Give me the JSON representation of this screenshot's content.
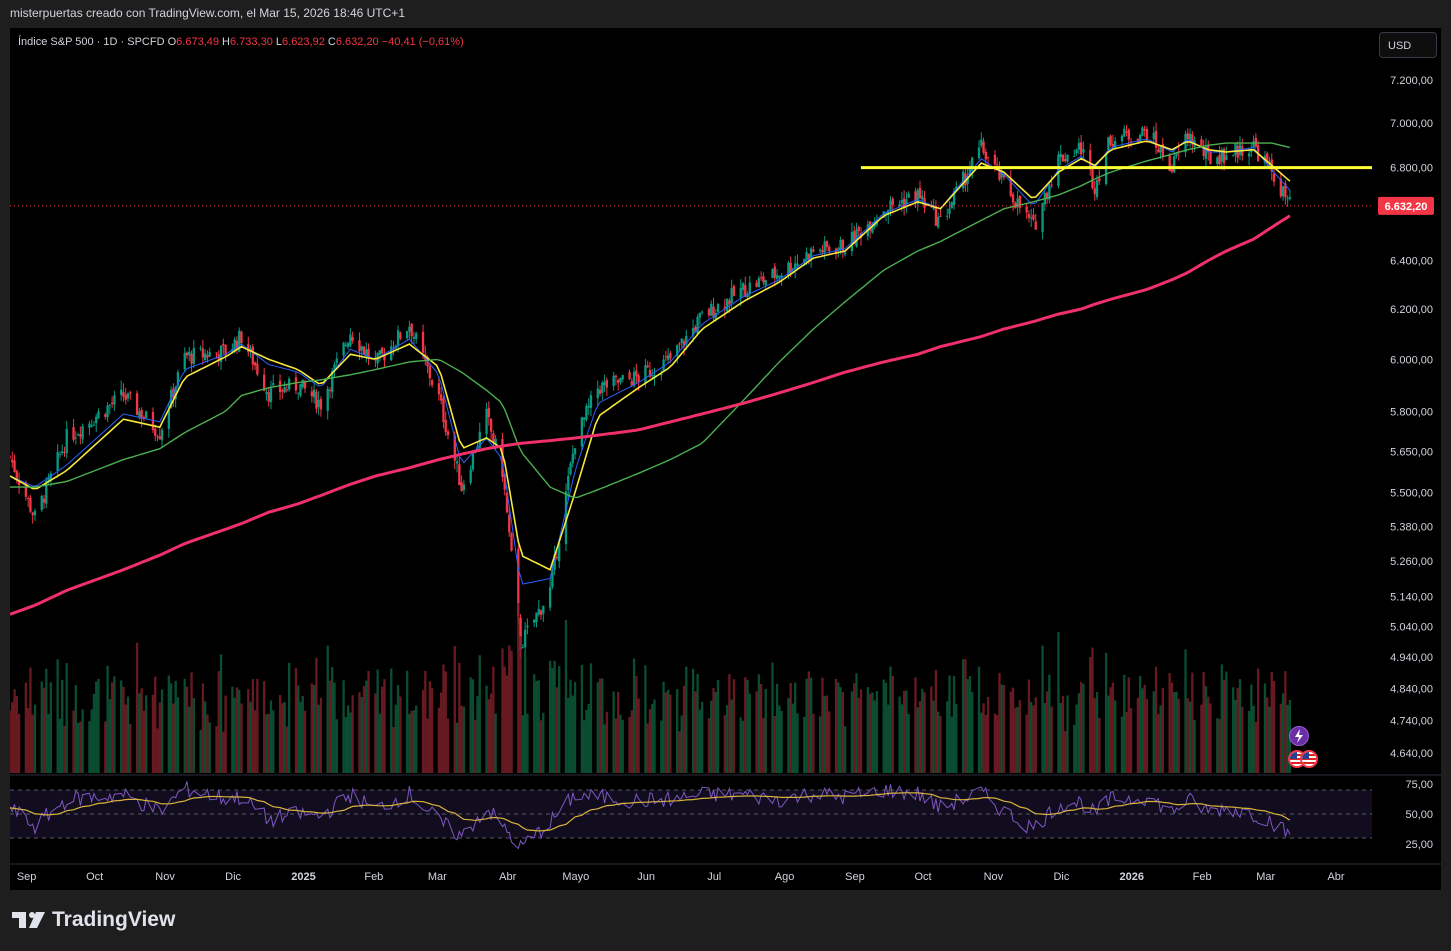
{
  "header": {
    "text": "misterpuertas creado con TradingView.com, el Mar 15, 2026 18:46 UTC+1"
  },
  "instrument": {
    "title": "Índice S&P 500 · 1D · SPCFD",
    "o_label": "O",
    "o_value": "6.673,49",
    "h_label": "H",
    "h_value": "6.733,30",
    "l_label": "L",
    "l_value": "6.623,92",
    "c_label": "C",
    "c_value": "6.632,20",
    "change": "−40,41 (−0,61%)"
  },
  "currency_button": "USD",
  "brand": {
    "name": "TradingView"
  },
  "colors": {
    "up": "#089981",
    "down": "#f23645",
    "ema_fast": "#2962ff",
    "ema_slow": "#f7e83c",
    "sma50": "#4caf50",
    "sma200": "#f0306a",
    "level_line": "#ffff33",
    "rsi": "#7e57c2",
    "rsi_ma": "#d8b33c"
  },
  "chart_data": {
    "type": "line",
    "title": "",
    "xlabel": "",
    "ylabel": "",
    "y_scale": "log",
    "ylim": [
      4580,
      7420
    ],
    "y_ticks": [
      "7.200,00",
      "7.000,00",
      "6.800,00",
      "6.400,00",
      "6.200,00",
      "6.000,00",
      "5.800,00",
      "5.650,00",
      "5.500,00",
      "5.380,00",
      "5.260,00",
      "5.140,00",
      "5.040,00",
      "4.940,00",
      "4.840,00",
      "4.740,00",
      "4.640,00"
    ],
    "y_tick_values": [
      7200,
      7000,
      6800,
      6400,
      6200,
      6000,
      5800,
      5650,
      5500,
      5380,
      5260,
      5140,
      5040,
      4940,
      4840,
      4740,
      4640
    ],
    "x_ticks": [
      "Sep",
      "Oct",
      "Nov",
      "Dic",
      "2025",
      "Feb",
      "Mar",
      "Abr",
      "Mayo",
      "Jun",
      "Jul",
      "Ago",
      "Sep",
      "Oct",
      "Nov",
      "Dic",
      "2026",
      "Feb",
      "Mar",
      "Abr"
    ],
    "x_tick_dates": [
      "2024-09-01",
      "2024-10-01",
      "2024-11-01",
      "2024-12-01",
      "2025-01-01",
      "2025-02-01",
      "2025-03-01",
      "2025-04-01",
      "2025-05-01",
      "2025-06-01",
      "2025-07-01",
      "2025-08-01",
      "2025-09-01",
      "2025-10-01",
      "2025-11-01",
      "2025-12-01",
      "2026-01-01",
      "2026-02-01",
      "2026-03-01",
      "2026-04-01"
    ],
    "last_price": 6632.2,
    "last_price_label": "6.632,20",
    "horizontal_level": 6800,
    "close_path": {
      "dates": [
        "2024-08-26",
        "2024-09-06",
        "2024-09-20",
        "2024-10-15",
        "2024-10-31",
        "2024-11-11",
        "2024-11-29",
        "2024-12-06",
        "2024-12-18",
        "2024-12-31",
        "2025-01-10",
        "2025-01-23",
        "2025-02-03",
        "2025-02-18",
        "2025-03-03",
        "2025-03-13",
        "2025-03-24",
        "2025-03-31",
        "2025-04-08",
        "2025-04-21",
        "2025-05-02",
        "2025-05-12",
        "2025-05-30",
        "2025-06-13",
        "2025-06-27",
        "2025-07-15",
        "2025-07-31",
        "2025-08-15",
        "2025-08-29",
        "2025-09-15",
        "2025-09-30",
        "2025-10-10",
        "2025-10-28",
        "2025-11-07",
        "2025-11-20",
        "2025-12-01",
        "2025-12-11",
        "2025-12-17",
        "2025-12-24",
        "2026-01-09",
        "2026-01-20",
        "2026-01-27",
        "2026-02-05",
        "2026-02-13",
        "2026-02-25",
        "2026-03-05",
        "2026-03-13"
      ],
      "values": [
        5630,
        5410,
        5700,
        5860,
        5720,
        6010,
        6030,
        6090,
        5870,
        5900,
        5830,
        6110,
        5980,
        6140,
        5850,
        5520,
        5780,
        5580,
        4980,
        5160,
        5690,
        5890,
        5930,
        6000,
        6170,
        6280,
        6350,
        6440,
        6460,
        6620,
        6680,
        6560,
        6890,
        6730,
        6540,
        6840,
        6890,
        6720,
        6930,
        6960,
        6800,
        6950,
        6840,
        6860,
        6900,
        6780,
        6632
      ]
    },
    "series": [
      {
        "values": [
          5560,
          5520,
          5600,
          5790,
          5760,
          5960,
          6020,
          6060,
          5980,
          5950,
          5890,
          6040,
          6000,
          6080,
          5940,
          5600,
          5700,
          5620,
          5180,
          5200,
          5580,
          5830,
          5910,
          5990,
          6140,
          6250,
          6320,
          6420,
          6450,
          6600,
          6660,
          6620,
          6840,
          6770,
          6630,
          6790,
          6850,
          6800,
          6890,
          6930,
          6870,
          6930,
          6870,
          6870,
          6890,
          6790,
          6700
        ]
      },
      {
        "values": [
          5560,
          5510,
          5580,
          5770,
          5740,
          5930,
          6010,
          6050,
          6000,
          5960,
          5900,
          6020,
          6000,
          6060,
          5970,
          5660,
          5700,
          5660,
          5280,
          5230,
          5500,
          5780,
          5890,
          5970,
          6120,
          6230,
          6310,
          6410,
          6440,
          6590,
          6650,
          6620,
          6820,
          6780,
          6660,
          6780,
          6840,
          6810,
          6880,
          6920,
          6880,
          6920,
          6880,
          6870,
          6880,
          6810,
          6740
        ]
      },
      {
        "values": [
          5520,
          5520,
          5540,
          5620,
          5660,
          5720,
          5800,
          5860,
          5890,
          5910,
          5920,
          5940,
          5960,
          5990,
          6000,
          5950,
          5880,
          5830,
          5650,
          5520,
          5480,
          5510,
          5570,
          5620,
          5680,
          5840,
          5990,
          6120,
          6230,
          6360,
          6440,
          6480,
          6570,
          6620,
          6650,
          6680,
          6720,
          6750,
          6780,
          6830,
          6860,
          6880,
          6900,
          6910,
          6910,
          6910,
          6890
        ]
      },
      {
        "values": [
          5080,
          5110,
          5160,
          5230,
          5280,
          5320,
          5370,
          5390,
          5430,
          5460,
          5490,
          5530,
          5560,
          5590,
          5620,
          5640,
          5660,
          5670,
          5680,
          5690,
          5700,
          5710,
          5730,
          5760,
          5790,
          5830,
          5870,
          5910,
          5950,
          5990,
          6020,
          6050,
          6090,
          6120,
          6150,
          6180,
          6200,
          6220,
          6240,
          6280,
          6320,
          6350,
          6400,
          6440,
          6490,
          6540,
          6590
        ]
      }
    ],
    "volume_range_shown": "relative",
    "rsi": {
      "ylim": [
        20,
        80
      ],
      "y_ticks": [
        "75,00",
        "50,00",
        "25,00"
      ],
      "y_tick_values": [
        75,
        50,
        25
      ],
      "bands": [
        70,
        50,
        30
      ],
      "values": [
        55,
        40,
        62,
        66,
        52,
        71,
        63,
        64,
        45,
        50,
        48,
        66,
        54,
        67,
        44,
        31,
        55,
        40,
        22,
        43,
        66,
        64,
        61,
        62,
        66,
        66,
        62,
        67,
        64,
        70,
        67,
        55,
        68,
        52,
        38,
        58,
        60,
        50,
        62,
        64,
        52,
        62,
        52,
        55,
        50,
        44,
        32
      ]
    }
  }
}
